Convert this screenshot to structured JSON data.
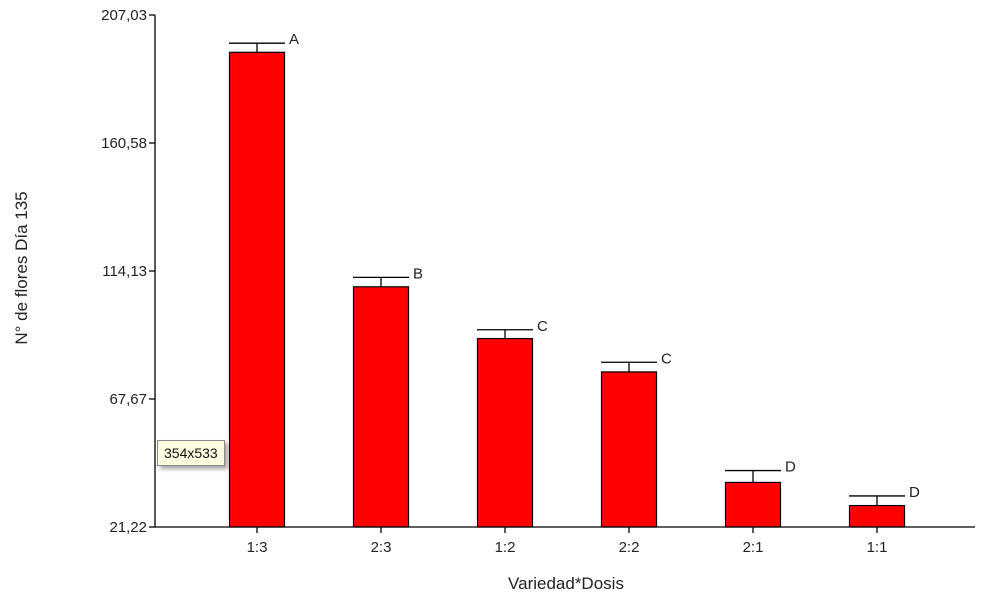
{
  "chart_data": {
    "type": "bar",
    "xlabel": "Variedad*Dosis",
    "ylabel": "N° de flores Día 135",
    "categories": [
      "1:3",
      "2:3",
      "1:2",
      "2:2",
      "2:1",
      "1:1"
    ],
    "values": [
      193.5,
      108.4,
      89.6,
      77.5,
      37.4,
      29.0
    ],
    "errors": [
      3.3,
      3.4,
      3.2,
      3.5,
      4.3,
      3.5
    ],
    "letters": [
      "A",
      "B",
      "C",
      "C",
      "D",
      "D"
    ],
    "ylim": [
      21.22,
      207.03
    ],
    "yticks": [
      "21,22",
      "67,67",
      "114,13",
      "160,58",
      "207,03"
    ],
    "bar_color": "#ff0000",
    "grid": false
  },
  "tooltip": "354x533"
}
